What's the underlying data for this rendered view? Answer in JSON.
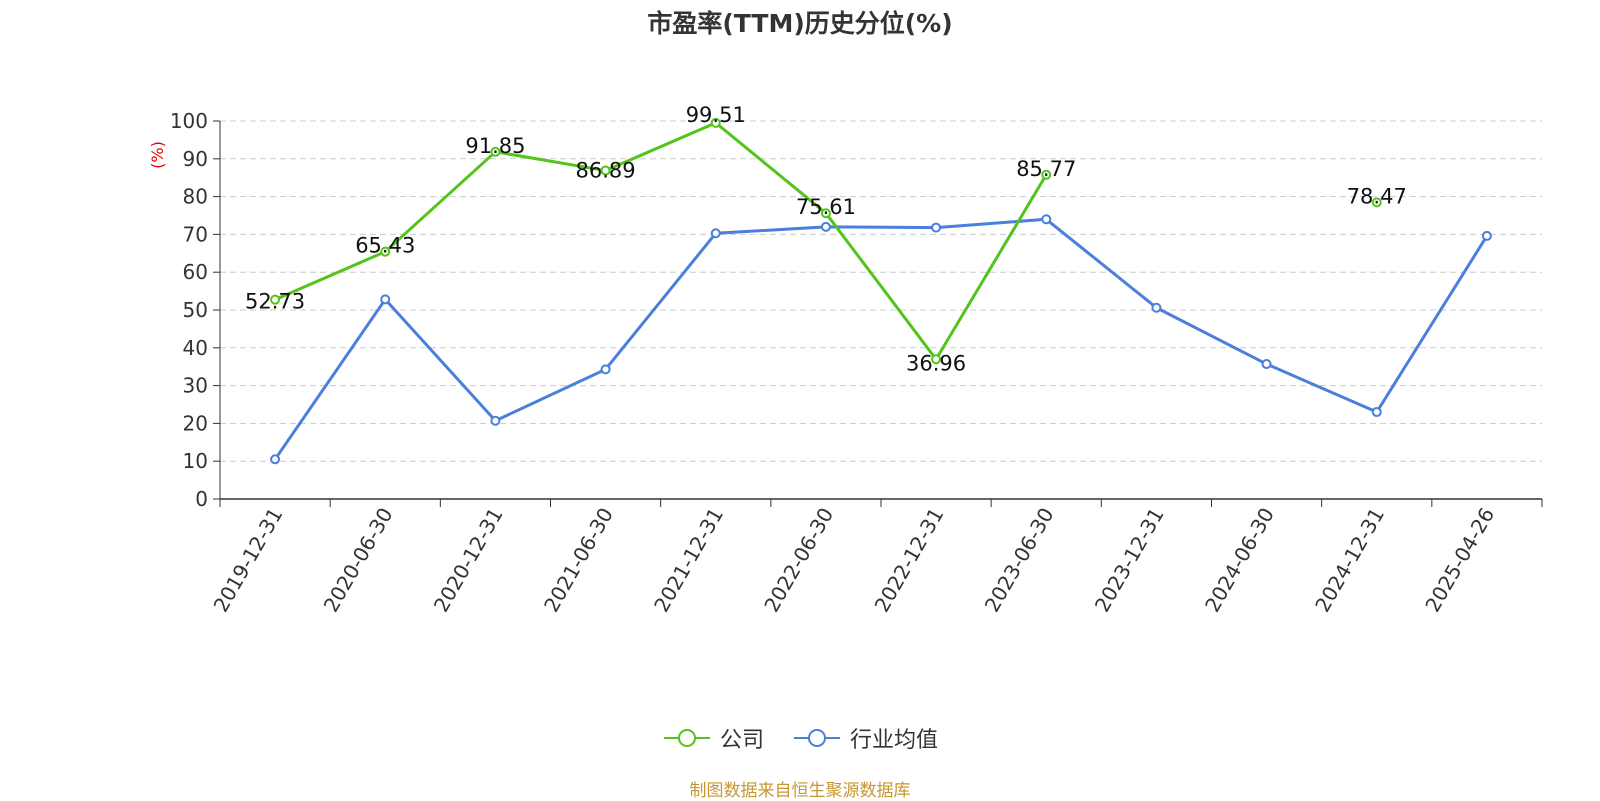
{
  "chart_data": {
    "type": "line",
    "title": "市盈率(TTM)历史分位(%)",
    "ylabel": "(%)",
    "xlabel": "",
    "ylim": [
      0,
      100
    ],
    "yticks": [
      0,
      10,
      20,
      30,
      40,
      50,
      60,
      70,
      80,
      90,
      100
    ],
    "categories": [
      "2019-12-31",
      "2020-06-30",
      "2020-12-31",
      "2021-06-30",
      "2021-12-31",
      "2022-06-30",
      "2022-12-31",
      "2023-06-30",
      "2023-12-31",
      "2024-06-30",
      "2024-12-31",
      "2025-04-26"
    ],
    "grid": true,
    "legend_position": "bottom",
    "series": [
      {
        "name": "公司",
        "color": "#52c41a",
        "values": [
          52.73,
          65.43,
          91.85,
          86.89,
          99.51,
          75.61,
          36.96,
          85.77,
          null,
          null,
          78.47,
          null
        ],
        "labels": [
          "52.73",
          "65.43",
          "91.85",
          "86.89",
          "99.51",
          "75.61",
          "36.96",
          "85.77",
          null,
          null,
          "78.47",
          null
        ]
      },
      {
        "name": "行业均值",
        "color": "#4a7fdc",
        "values": [
          10.5,
          52.8,
          20.7,
          34.3,
          70.3,
          72.0,
          71.8,
          74.0,
          50.6,
          35.7,
          23.0,
          69.6
        ]
      }
    ]
  },
  "source_text": "制图数据来自恒生聚源数据库"
}
